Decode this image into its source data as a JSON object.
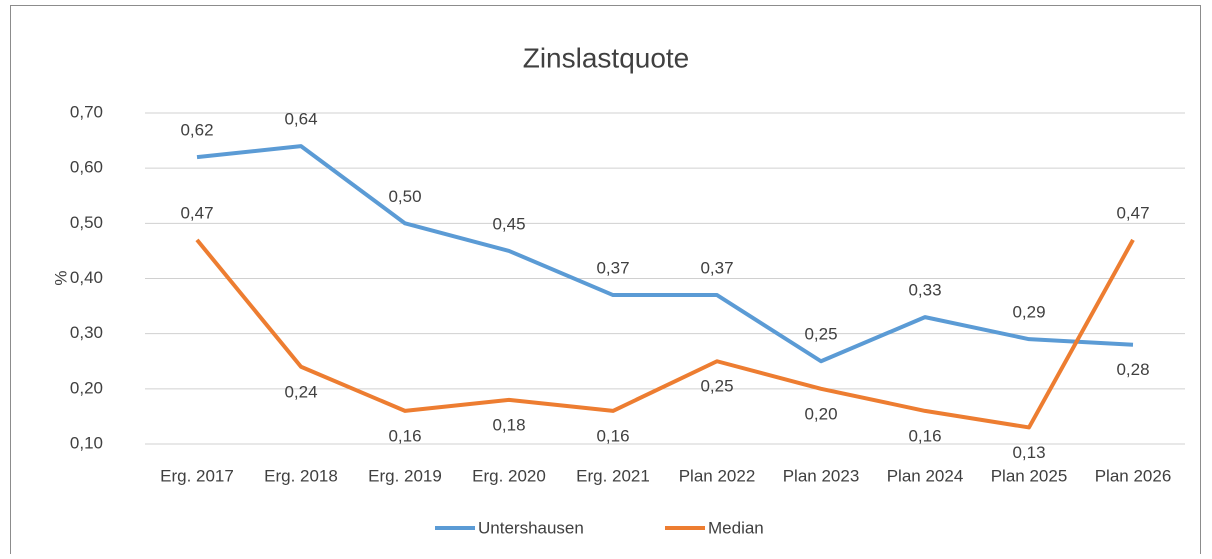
{
  "chart_data": {
    "type": "line",
    "title": "Zinslastquote",
    "y_label": "%",
    "categories": [
      "Erg. 2017",
      "Erg. 2018",
      "Erg. 2019",
      "Erg. 2020",
      "Erg. 2021",
      "Plan 2022",
      "Plan 2023",
      "Plan 2024",
      "Plan 2025",
      "Plan 2026"
    ],
    "series": [
      {
        "name": "Untershausen",
        "color": "#5b9bd5",
        "values": [
          0.62,
          0.64,
          0.5,
          0.45,
          0.37,
          0.37,
          0.25,
          0.33,
          0.29,
          0.28
        ],
        "value_labels": [
          "0,62",
          "0,64",
          "0,50",
          "0,45",
          "0,37",
          "0,37",
          "0,25",
          "0,33",
          "0,29",
          "0,28"
        ]
      },
      {
        "name": "Median",
        "color": "#ed7d31",
        "values": [
          0.47,
          0.24,
          0.16,
          0.18,
          0.16,
          0.25,
          0.2,
          0.16,
          0.13,
          0.47
        ],
        "value_labels": [
          "0,47",
          "0,24",
          "0,16",
          "0,18",
          "0,16",
          "0,25",
          "0,20",
          "0,16",
          "0,13",
          "0,47"
        ]
      }
    ],
    "ylim": [
      0.1,
      0.7
    ],
    "yticks": [
      {
        "value": 0.1,
        "label": "0,10"
      },
      {
        "value": 0.2,
        "label": "0,20"
      },
      {
        "value": 0.3,
        "label": "0,30"
      },
      {
        "value": 0.4,
        "label": "0,40"
      },
      {
        "value": 0.5,
        "label": "0,50"
      },
      {
        "value": 0.6,
        "label": "0,60"
      },
      {
        "value": 0.7,
        "label": "0,70"
      }
    ],
    "grid": true,
    "legend": "bottom"
  }
}
